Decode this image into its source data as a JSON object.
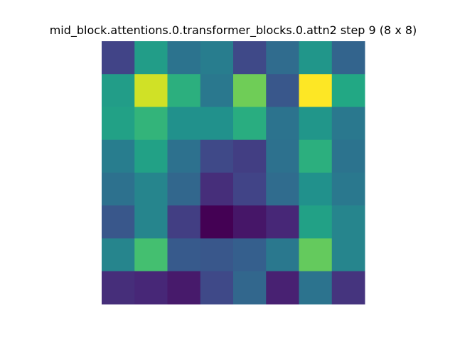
{
  "chart_data": {
    "type": "heatmap",
    "title": "mid_block.attentions.0.transformer_blocks.0.attn2 step 9 (8 x 8)",
    "colormap": "viridis",
    "rows": 8,
    "cols": 8,
    "values": [
      [
        0.2,
        0.55,
        0.38,
        0.42,
        0.22,
        0.35,
        0.52,
        0.32
      ],
      [
        0.55,
        0.93,
        0.63,
        0.4,
        0.78,
        0.27,
        1.0,
        0.6
      ],
      [
        0.57,
        0.65,
        0.5,
        0.5,
        0.62,
        0.38,
        0.52,
        0.4
      ],
      [
        0.42,
        0.57,
        0.37,
        0.22,
        0.18,
        0.37,
        0.63,
        0.38
      ],
      [
        0.37,
        0.45,
        0.33,
        0.13,
        0.2,
        0.35,
        0.5,
        0.4
      ],
      [
        0.27,
        0.45,
        0.18,
        0.0,
        0.06,
        0.11,
        0.57,
        0.45
      ],
      [
        0.45,
        0.7,
        0.28,
        0.27,
        0.3,
        0.4,
        0.76,
        0.45
      ],
      [
        0.13,
        0.11,
        0.07,
        0.22,
        0.33,
        0.09,
        0.38,
        0.15
      ]
    ]
  }
}
